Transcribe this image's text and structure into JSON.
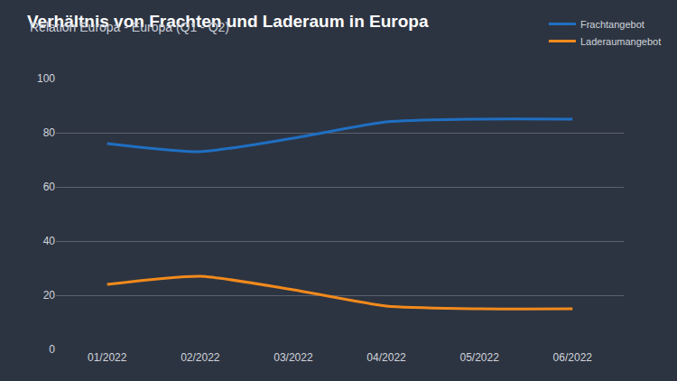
{
  "chart_data": {
    "type": "line",
    "title": "Verhältnis von Frachten und Laderaum in Europa",
    "subtitle": "Relation Europa - Europa (Q1 - Q2)",
    "categories": [
      "01/2022",
      "02/2022",
      "03/2022",
      "04/2022",
      "05/2022",
      "06/2022"
    ],
    "series": [
      {
        "name": "Frachtangebot",
        "color": "#1f6fc2",
        "values": [
          76,
          73,
          78,
          84,
          85,
          85
        ]
      },
      {
        "name": "Laderaumangebot",
        "color": "#f28a1c",
        "values": [
          24,
          27,
          22,
          16,
          15,
          15
        ]
      }
    ],
    "ylim": [
      0,
      100
    ],
    "yticks": [
      0,
      20,
      40,
      60,
      80,
      100
    ],
    "grid": true,
    "legend": "top right"
  }
}
